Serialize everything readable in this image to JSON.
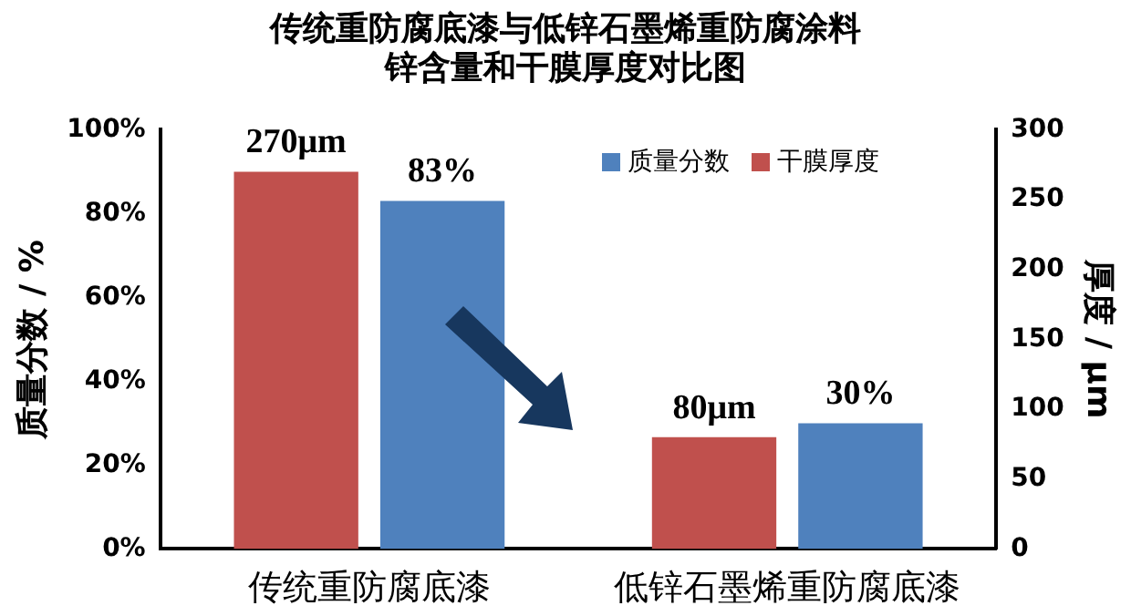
{
  "chart_data": {
    "type": "bar",
    "title": "传统重防腐底漆与低锌石墨烯重防腐涂料锌含量和干膜厚度对比图",
    "categories": [
      "传统重防腐底漆",
      "低锌石墨烯重防腐底漆"
    ],
    "series": [
      {
        "name": "干膜厚度",
        "color": "#c0504d",
        "values": [
          270,
          80
        ],
        "axis": "y2",
        "value_labels": [
          "270μm",
          "80μm"
        ]
      },
      {
        "name": "质量分数",
        "color": "#4f81bd",
        "values": [
          83,
          30
        ],
        "value_labels": [
          "83%",
          "30%"
        ]
      }
    ],
    "ylabel": "质量分数 / %",
    "y2label": "厚度 / μm",
    "ylim": [
      0,
      100
    ],
    "yticks": [
      {
        "value": 0,
        "label": "0%"
      },
      {
        "value": 20,
        "label": "20%"
      },
      {
        "value": 40,
        "label": "40%"
      },
      {
        "value": 60,
        "label": "60%"
      },
      {
        "value": 80,
        "label": "80%"
      },
      {
        "value": 100,
        "label": "100%"
      }
    ],
    "y2lim": [
      0,
      300
    ],
    "y2ticks": [
      0,
      50,
      100,
      150,
      200,
      250,
      300
    ],
    "grid": false,
    "legend": "top right"
  }
}
